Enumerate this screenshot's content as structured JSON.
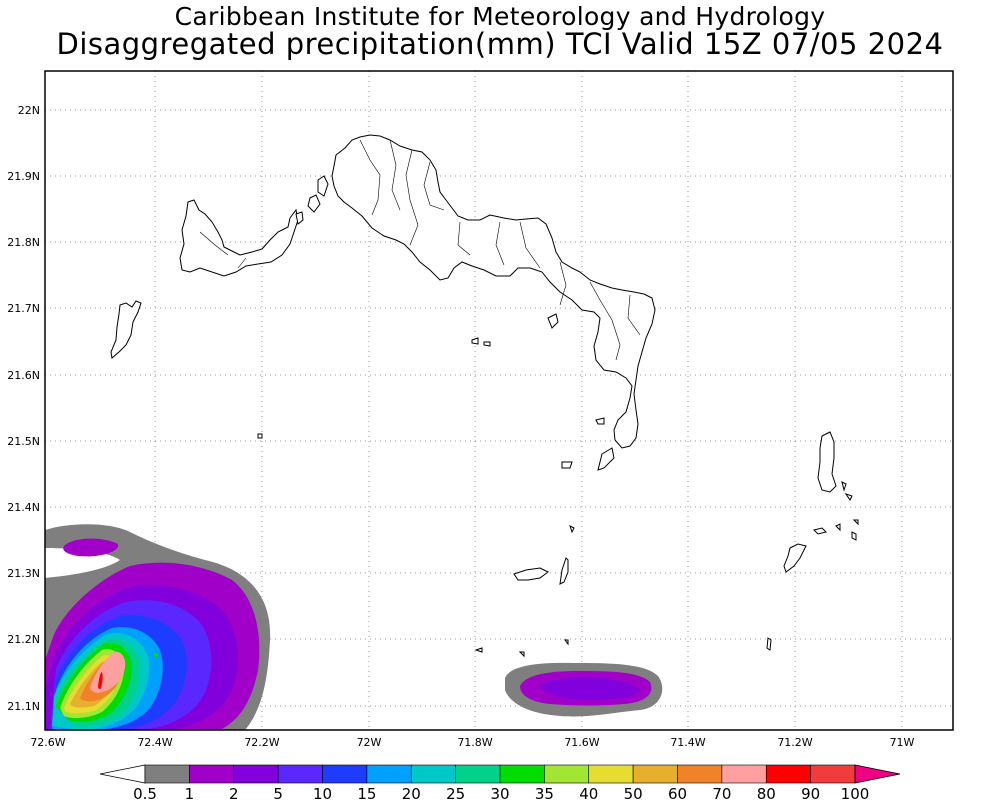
{
  "title_line1": "Caribbean Institute for Meteorology and Hydrology",
  "title_line2": "Disaggregated precipitation(mm) TCI Valid 15Z 07/05 2024",
  "y_labels": [
    "22N",
    "21.9N",
    "21.8N",
    "21.7N",
    "21.6N",
    "21.5N",
    "21.4N",
    "21.3N",
    "21.2N",
    "21.1N"
  ],
  "x_labels": [
    "72.6W",
    "72.4W",
    "72.2W",
    "72W",
    "71.8W",
    "71.6W",
    "71.4W",
    "71.2W",
    "71W"
  ],
  "colorbar_labels": [
    "0.5",
    "1",
    "2",
    "5",
    "10",
    "15",
    "20",
    "25",
    "30",
    "35",
    "40",
    "50",
    "60",
    "70",
    "80",
    "90",
    "100"
  ],
  "colorbar_colors": [
    "#ffffff",
    "#7f7f7f",
    "#a000c8",
    "#8200dc",
    "#5a28ff",
    "#1e3cff",
    "#00a0ff",
    "#00c8c8",
    "#00d28c",
    "#00dc00",
    "#a0e632",
    "#e6dc32",
    "#e6af2d",
    "#f08228",
    "#ffa0a0",
    "#ff0000",
    "#f03c3c",
    "#f00082"
  ],
  "map_data": {
    "lat_range": [
      21.06,
      22.05
    ],
    "lon_range": [
      -72.6,
      -70.92
    ],
    "grid": true
  }
}
